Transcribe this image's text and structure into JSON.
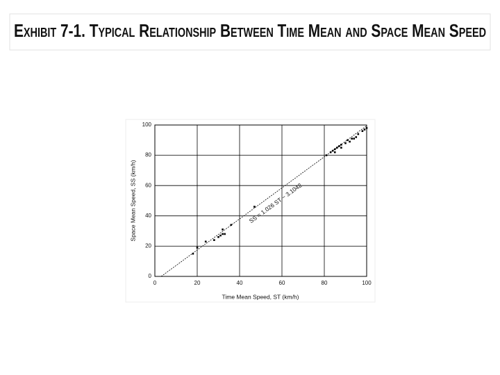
{
  "chart_data": {
    "type": "scatter",
    "title": "Exhibit 7-1. Typical Relationship Between Time Mean and Space Mean Speed",
    "x_label": "Time Mean Speed, ST (km/h)",
    "y_label": "Space Mean Speed, SS (km/h)",
    "annotation": "SS = 1.026 ST − 3.1042",
    "x": [
      18,
      20,
      24,
      28,
      30,
      31,
      32,
      32,
      33,
      36,
      47,
      81,
      83,
      84,
      85,
      85,
      86,
      87,
      88,
      88,
      90,
      91,
      92,
      93,
      94,
      95,
      96,
      98,
      99,
      100
    ],
    "y": [
      15,
      19,
      23,
      24,
      26,
      27,
      28,
      31,
      28,
      34,
      46,
      80,
      82,
      83,
      84,
      82,
      85,
      86,
      87,
      85,
      88,
      90,
      89,
      91,
      91,
      92,
      94,
      96,
      97,
      98
    ],
    "color": "#000000",
    "fit_line": {
      "x": [
        3,
        100
      ],
      "y": [
        0,
        99.5
      ]
    },
    "xlim": [
      0,
      100
    ],
    "ylim": [
      0,
      100
    ],
    "xticks": [
      0,
      20,
      40,
      60,
      80,
      100
    ],
    "yticks": [
      0,
      20,
      40,
      60,
      80,
      100
    ],
    "grid": true
  }
}
